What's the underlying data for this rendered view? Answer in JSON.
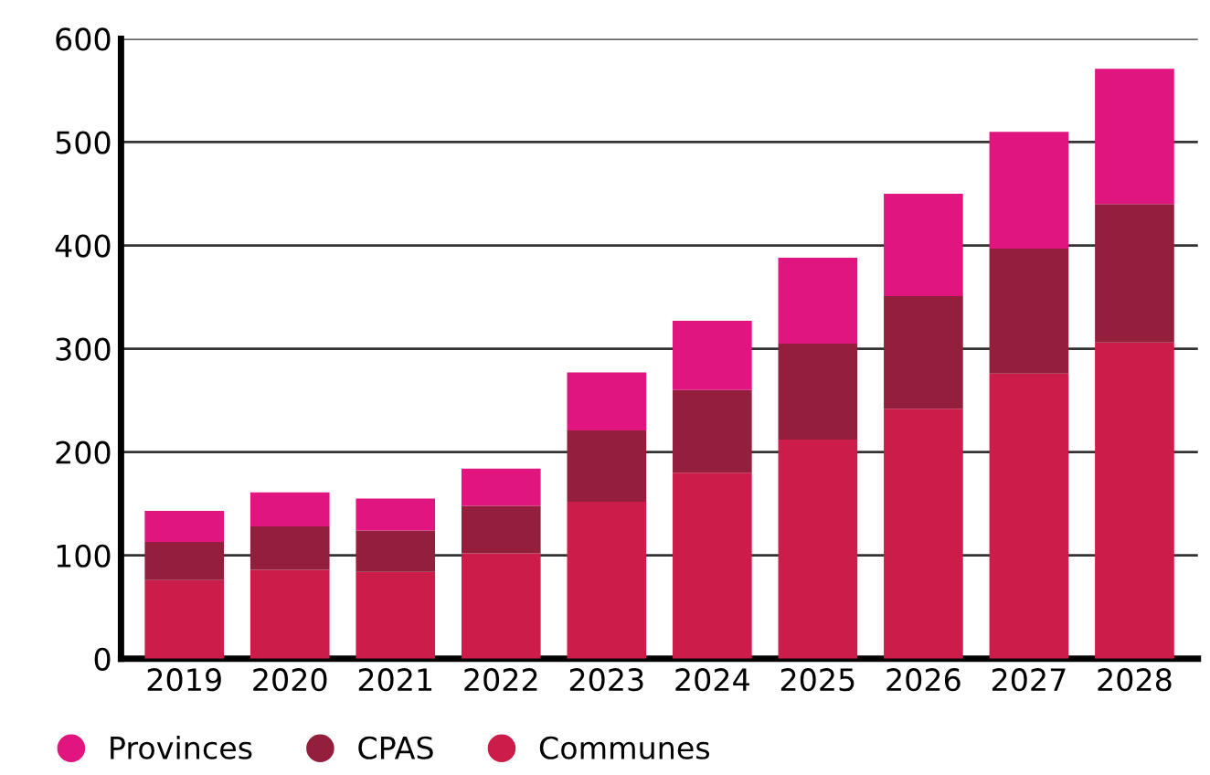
{
  "chart_data": {
    "type": "bar",
    "stacked": true,
    "categories": [
      "2019",
      "2020",
      "2021",
      "2022",
      "2023",
      "2024",
      "2025",
      "2026",
      "2027",
      "2028"
    ],
    "series": [
      {
        "name": "Communes",
        "color": "#cc1c4a",
        "values": [
          76,
          86,
          84,
          102,
          152,
          180,
          212,
          242,
          276,
          306
        ]
      },
      {
        "name": "CPAS",
        "color": "#931f3c",
        "values": [
          37,
          42,
          40,
          46,
          69,
          80,
          93,
          109,
          121,
          134
        ]
      },
      {
        "name": "Provinces",
        "color": "#e0157f",
        "values": [
          30,
          33,
          31,
          36,
          56,
          67,
          83,
          99,
          113,
          131
        ]
      }
    ],
    "ylim": [
      0,
      600
    ],
    "yticks": [
      0,
      100,
      200,
      300,
      400,
      500,
      600
    ],
    "grid": "y",
    "legend": "bottom left"
  }
}
